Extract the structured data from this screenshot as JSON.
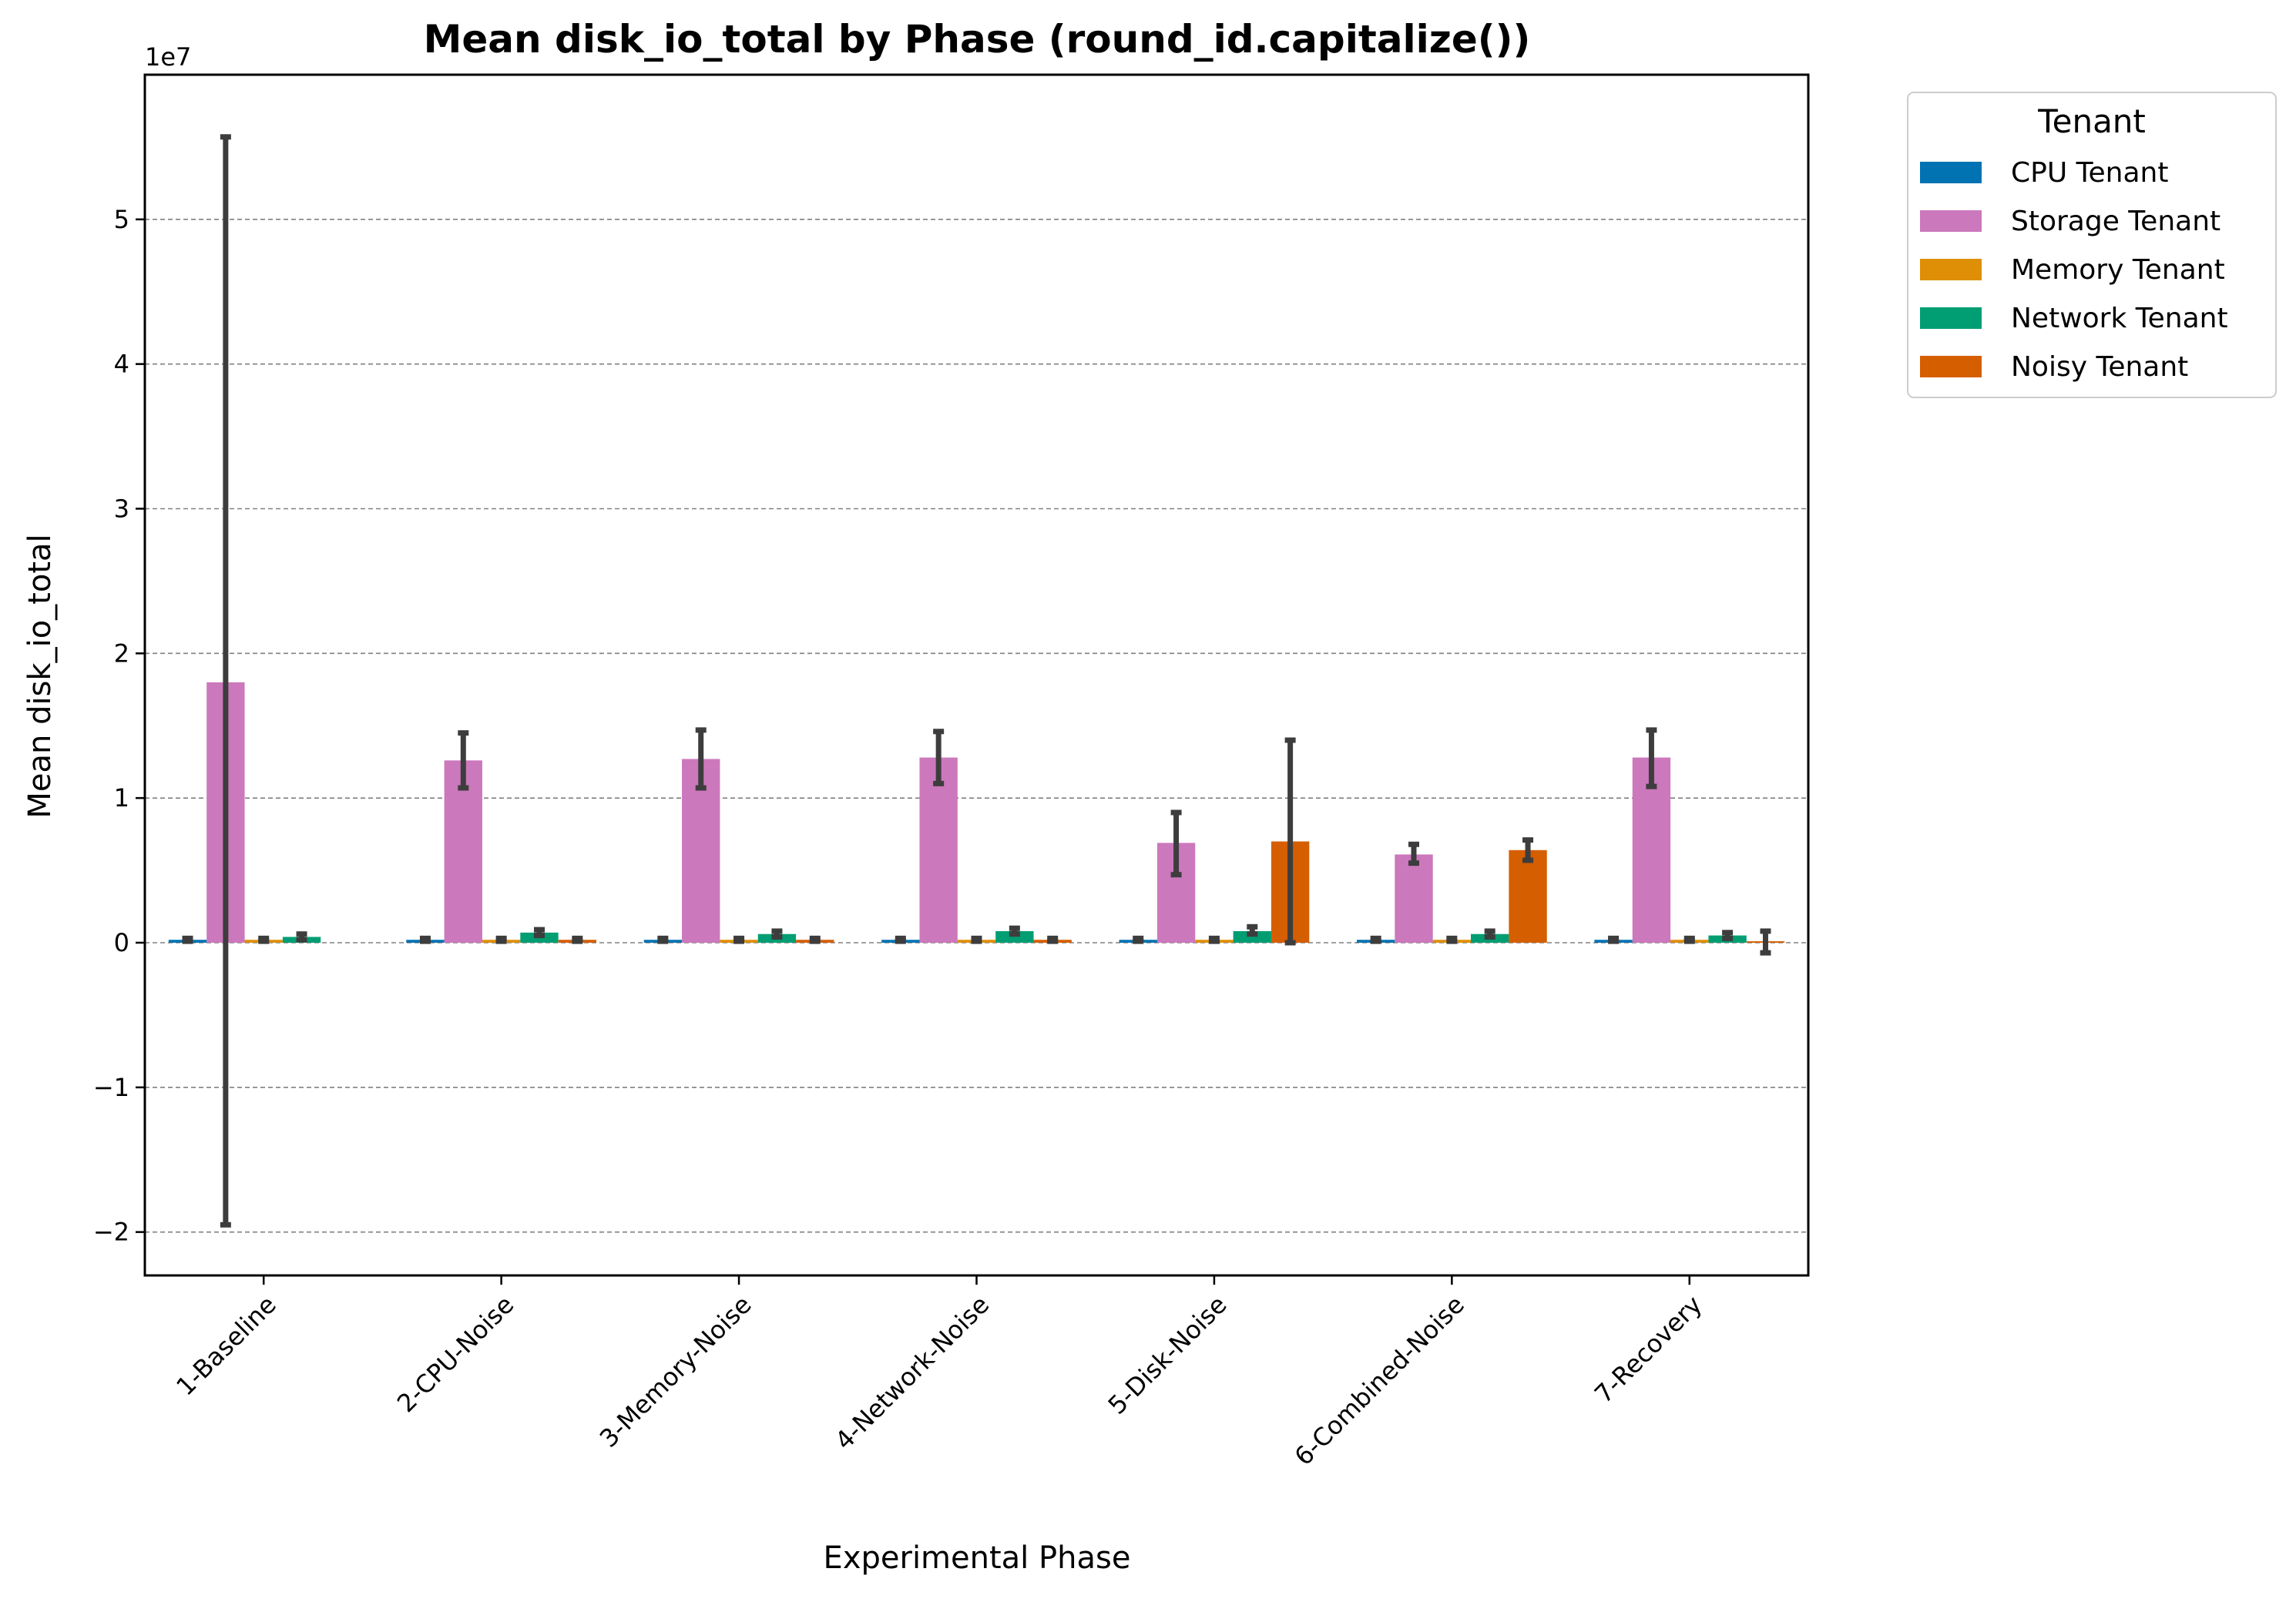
{
  "chart_data": {
    "type": "bar",
    "title": "Mean disk_io_total by Phase (round_id.capitalize())",
    "xlabel": "Experimental Phase",
    "ylabel": "Mean disk_io_total",
    "offset_label": "1e7",
    "scale": 10000000,
    "ylim": [
      -2.3,
      6.0
    ],
    "yticks": [
      -2,
      -1,
      0,
      1,
      2,
      3,
      4,
      5
    ],
    "ytick_labels": [
      "−2",
      "−1",
      "0",
      "1",
      "2",
      "3",
      "4",
      "5"
    ],
    "grid": "horizontal dashed",
    "legend_title": "Tenant",
    "legend_position": "outside top-right",
    "categories": [
      "1-Baseline",
      "2-CPU-Noise",
      "3-Memory-Noise",
      "4-Network-Noise",
      "5-Disk-Noise",
      "6-Combined-Noise",
      "7-Recovery"
    ],
    "series": [
      {
        "name": "CPU Tenant",
        "color": "#0173b2",
        "values": [
          0.02,
          0.02,
          0.02,
          0.02,
          0.02,
          0.02,
          0.02
        ],
        "error": [
          [
            0.01,
            0.03
          ],
          [
            0.01,
            0.03
          ],
          [
            0.01,
            0.03
          ],
          [
            0.01,
            0.03
          ],
          [
            0.01,
            0.03
          ],
          [
            0.01,
            0.03
          ],
          [
            0.01,
            0.03
          ]
        ]
      },
      {
        "name": "Storage Tenant",
        "color": "#cc78bc",
        "values": [
          1.8,
          1.26,
          1.27,
          1.28,
          0.69,
          0.61,
          1.28
        ],
        "error": [
          [
            -1.95,
            5.57
          ],
          [
            1.07,
            1.45
          ],
          [
            1.07,
            1.47
          ],
          [
            1.1,
            1.46
          ],
          [
            0.47,
            0.9
          ],
          [
            0.55,
            0.68
          ],
          [
            1.08,
            1.47
          ]
        ]
      },
      {
        "name": "Memory Tenant",
        "color": "#de8f05",
        "values": [
          0.02,
          0.02,
          0.02,
          0.02,
          0.02,
          0.02,
          0.02
        ],
        "error": [
          [
            0.01,
            0.03
          ],
          [
            0.01,
            0.03
          ],
          [
            0.01,
            0.03
          ],
          [
            0.01,
            0.03
          ],
          [
            0.01,
            0.03
          ],
          [
            0.01,
            0.03
          ],
          [
            0.01,
            0.03
          ]
        ]
      },
      {
        "name": "Network Tenant",
        "color": "#029e73",
        "values": [
          0.04,
          0.07,
          0.06,
          0.08,
          0.08,
          0.06,
          0.05
        ],
        "error": [
          [
            0.02,
            0.06
          ],
          [
            0.05,
            0.09
          ],
          [
            0.04,
            0.08
          ],
          [
            0.06,
            0.1
          ],
          [
            0.06,
            0.11
          ],
          [
            0.04,
            0.08
          ],
          [
            0.03,
            0.07
          ]
        ]
      },
      {
        "name": "Noisy Tenant",
        "color": "#d55e00",
        "values": [
          null,
          0.02,
          0.02,
          0.02,
          0.7,
          0.64,
          0.01
        ],
        "error": [
          null,
          [
            0.01,
            0.03
          ],
          [
            0.01,
            0.03
          ],
          [
            0.01,
            0.03
          ],
          [
            0.0,
            1.4
          ],
          [
            0.57,
            0.71
          ],
          [
            -0.07,
            0.08
          ]
        ]
      }
    ]
  }
}
